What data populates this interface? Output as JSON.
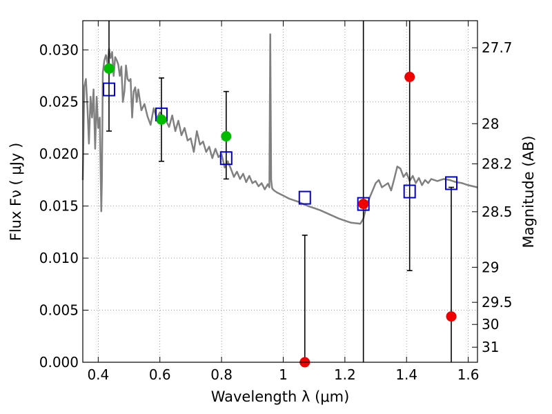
{
  "chart_data": {
    "type": "scatter",
    "xlabel": "Wavelength  λ (μm)",
    "ylabel": "Flux  Fν  ( μJy )",
    "ylabel2": "Magnitude (AB)",
    "xlim": [
      0.35,
      1.63
    ],
    "ylim": [
      0.0,
      0.0328
    ],
    "grid": true,
    "x_ticks": [
      0.4,
      0.6,
      0.8,
      1.0,
      1.2,
      1.4,
      1.6
    ],
    "x_tick_labels": [
      "0.4",
      "0.6",
      "0.8",
      "1",
      "1.2",
      "1.4",
      "1.6"
    ],
    "y_ticks": [
      0.0,
      0.005,
      0.01,
      0.015,
      0.02,
      0.025,
      0.03
    ],
    "y_tick_labels": [
      "0.000",
      "0.005",
      "0.010",
      "0.015",
      "0.020",
      "0.025",
      "0.030"
    ],
    "mag_ticks": [
      "27.7",
      "28",
      "28.2",
      "28.5",
      "29",
      "29.5",
      "30",
      "31"
    ],
    "colors": {
      "model": "#808080",
      "model_phot": "#0000cc",
      "obs_detected": "#00bb00",
      "obs_undetected": "#ee0000",
      "errorbar": "#000000"
    },
    "model_spectrum": {
      "x": [
        0.35,
        0.355,
        0.36,
        0.365,
        0.37,
        0.375,
        0.38,
        0.385,
        0.39,
        0.395,
        0.4,
        0.405,
        0.41,
        0.412,
        0.415,
        0.42,
        0.425,
        0.43,
        0.435,
        0.44,
        0.445,
        0.45,
        0.455,
        0.46,
        0.465,
        0.47,
        0.475,
        0.48,
        0.485,
        0.49,
        0.495,
        0.5,
        0.505,
        0.51,
        0.515,
        0.52,
        0.525,
        0.53,
        0.54,
        0.55,
        0.56,
        0.57,
        0.58,
        0.59,
        0.6,
        0.61,
        0.62,
        0.63,
        0.64,
        0.65,
        0.66,
        0.67,
        0.68,
        0.69,
        0.7,
        0.71,
        0.72,
        0.73,
        0.74,
        0.75,
        0.76,
        0.77,
        0.78,
        0.79,
        0.8,
        0.81,
        0.82,
        0.83,
        0.84,
        0.85,
        0.86,
        0.87,
        0.88,
        0.89,
        0.9,
        0.91,
        0.92,
        0.93,
        0.94,
        0.95,
        0.955,
        0.958,
        0.961,
        0.964,
        0.97,
        0.98,
        1.0,
        1.02,
        1.05,
        1.08,
        1.1,
        1.12,
        1.15,
        1.18,
        1.2,
        1.22,
        1.25,
        1.26,
        1.27,
        1.28,
        1.3,
        1.31,
        1.32,
        1.34,
        1.35,
        1.36,
        1.37,
        1.38,
        1.39,
        1.4,
        1.41,
        1.42,
        1.43,
        1.44,
        1.45,
        1.46,
        1.47,
        1.48,
        1.5,
        1.52,
        1.54,
        1.56,
        1.58,
        1.6,
        1.63
      ],
      "y": [
        0.0175,
        0.0265,
        0.0272,
        0.0245,
        0.021,
        0.0255,
        0.0235,
        0.0262,
        0.0205,
        0.0255,
        0.0225,
        0.0235,
        0.0145,
        0.0175,
        0.0278,
        0.029,
        0.0295,
        0.0287,
        0.0301,
        0.0292,
        0.0298,
        0.0275,
        0.0293,
        0.029,
        0.0286,
        0.0275,
        0.0284,
        0.025,
        0.026,
        0.0285,
        0.0272,
        0.027,
        0.0272,
        0.0235,
        0.026,
        0.0264,
        0.025,
        0.0262,
        0.0242,
        0.0248,
        0.0236,
        0.0228,
        0.0244,
        0.0234,
        0.024,
        0.0236,
        0.0232,
        0.0226,
        0.0237,
        0.0222,
        0.0232,
        0.0218,
        0.0225,
        0.0213,
        0.0215,
        0.0202,
        0.0222,
        0.0209,
        0.0212,
        0.0202,
        0.0207,
        0.0196,
        0.0205,
        0.0197,
        0.02,
        0.0187,
        0.0193,
        0.0186,
        0.0178,
        0.0183,
        0.0176,
        0.0181,
        0.0173,
        0.0179,
        0.0172,
        0.0174,
        0.0169,
        0.0172,
        0.0166,
        0.0171,
        0.0168,
        0.0315,
        0.0175,
        0.0167,
        0.0165,
        0.0163,
        0.016,
        0.0157,
        0.0154,
        0.015,
        0.0148,
        0.0146,
        0.0142,
        0.0138,
        0.0136,
        0.0134,
        0.0133,
        0.0138,
        0.015,
        0.0158,
        0.0172,
        0.0175,
        0.0168,
        0.0172,
        0.0165,
        0.0176,
        0.0188,
        0.0186,
        0.0178,
        0.0182,
        0.0174,
        0.0179,
        0.0172,
        0.0177,
        0.017,
        0.0175,
        0.0172,
        0.0176,
        0.0174,
        0.0176,
        0.0175,
        0.0173,
        0.0172,
        0.017,
        0.0168
      ]
    },
    "model_photometry": {
      "x": [
        0.435,
        0.605,
        0.815,
        1.07,
        1.26,
        1.41,
        1.545
      ],
      "y": [
        0.0262,
        0.0238,
        0.0196,
        0.0158,
        0.0152,
        0.0164,
        0.0172
      ]
    },
    "observed_detected": {
      "x": [
        0.435,
        0.605,
        0.815
      ],
      "y": [
        0.0282,
        0.0233,
        0.0217
      ],
      "err_low": [
        0.0222,
        0.0193,
        0.0176
      ],
      "err_high": [
        0.0335,
        0.0273,
        0.026
      ]
    },
    "observed_undetected": {
      "x": [
        1.07,
        1.26,
        1.41,
        1.545
      ],
      "y": [
        0.0,
        0.0152,
        0.0274,
        0.0044
      ],
      "err_low": [
        0.0,
        0.0,
        0.0088,
        0.0
      ],
      "err_high": [
        0.0122,
        0.0335,
        0.0335,
        0.0168
      ]
    }
  }
}
